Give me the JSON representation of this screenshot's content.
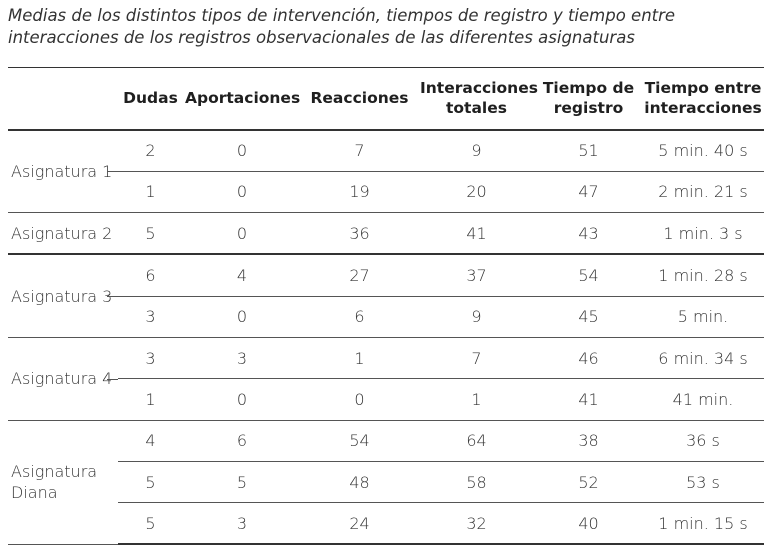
{
  "caption": {
    "line1": "Medias de los distintos tipos de intervención, tiempos de registro y tiempo entre",
    "line2": "interacciones de los registros observacionales de las diferentes asignaturas"
  },
  "headers": {
    "dudas": "Dudas",
    "aportaciones": "Aportaciones",
    "reacciones": "Reacciones",
    "interacciones_l1": "Interacciones",
    "interacciones_l2": "totales",
    "tiempo_registro_l1": "Tiempo de",
    "tiempo_registro_l2": "registro",
    "tiempo_entre_l1": "Tiempo entre",
    "tiempo_entre_l2": "interacciones"
  },
  "groups": [
    {
      "subject": "Asignatura 1",
      "rows": [
        [
          "2",
          "0",
          "7",
          "9",
          "51",
          "5 min. 40 s"
        ],
        [
          "1",
          "0",
          "19",
          "20",
          "47",
          "2 min. 21 s"
        ]
      ]
    },
    {
      "subject": "Asignatura 2",
      "rows": [
        [
          "5",
          "0",
          "36",
          "41",
          "43",
          "1 min. 3 s"
        ]
      ]
    },
    {
      "subject": "Asignatura 3",
      "rows": [
        [
          "6",
          "4",
          "27",
          "37",
          "54",
          "1 min. 28 s"
        ],
        [
          "3",
          "0",
          "6",
          "9",
          "45",
          "5 min."
        ]
      ]
    },
    {
      "subject": "Asignatura 4",
      "rows": [
        [
          "3",
          "3",
          "1",
          "7",
          "46",
          "6 min. 34 s"
        ],
        [
          "1",
          "0",
          "0",
          "1",
          "41",
          "41 min."
        ]
      ]
    },
    {
      "subject_l1": "Asignatura",
      "subject_l2": "Diana",
      "rows": [
        [
          "4",
          "6",
          "54",
          "64",
          "38",
          "36 s"
        ],
        [
          "5",
          "5",
          "48",
          "58",
          "52",
          "53 s"
        ],
        [
          "5",
          "3",
          "24",
          "32",
          "40",
          "1 min. 15 s"
        ]
      ]
    }
  ]
}
